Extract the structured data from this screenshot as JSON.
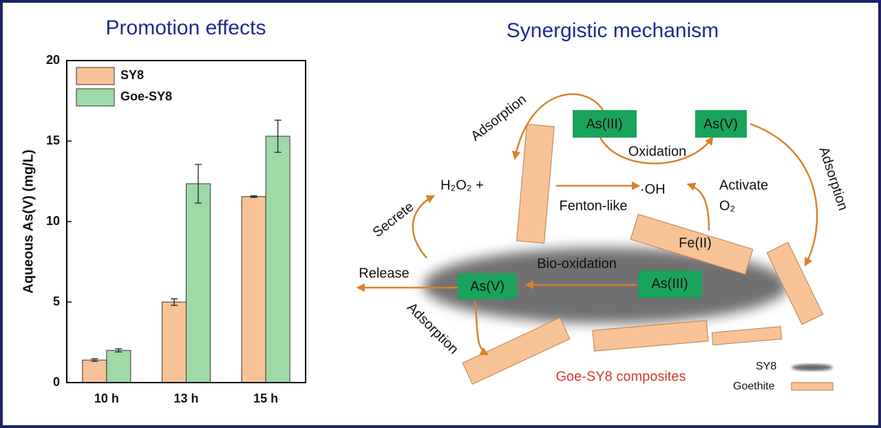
{
  "chart_data": {
    "type": "bar",
    "title": "Promotion effects",
    "y_label": "Aqueous As(V)  (mg/L)",
    "categories": [
      "10 h",
      "13 h",
      "15 h"
    ],
    "series": [
      {
        "name": "SY8",
        "color": "#f7c396",
        "values": [
          1.4,
          5.0,
          11.55
        ],
        "errors": [
          0.08,
          0.2,
          0.05
        ]
      },
      {
        "name": "Goe-SY8",
        "color": "#9fd9a8",
        "values": [
          2.0,
          12.35,
          15.3
        ],
        "errors": [
          0.1,
          1.2,
          1.0
        ]
      }
    ],
    "ylim": [
      0,
      20
    ],
    "yticks": [
      0,
      5,
      10,
      15,
      20
    ],
    "legend": "upper left"
  },
  "diagram": {
    "title": "Synergistic mechanism",
    "labels": {
      "adsorption_top": "Adsorption",
      "adsorption_right": "Adsorption",
      "adsorption_bottom": "Adsorption",
      "as3_top": "As(III)",
      "as5_top": "As(V)",
      "oxidation": "Oxidation",
      "h2o2": "H₂O₂ +",
      "oh": "·OH",
      "fenton": "Fenton-like",
      "activate": "Activate",
      "o2": "O₂",
      "secrete": "Secrete",
      "fe2": "Fe(II)",
      "release": "Release",
      "bio_oxidation": "Bio-oxidation",
      "as5_bottom": "As(V)",
      "as3_bottom": "As(III)",
      "composites": "Goe-SY8 composites"
    },
    "legend": {
      "sy8": "SY8",
      "goethite": "Goethite"
    }
  }
}
